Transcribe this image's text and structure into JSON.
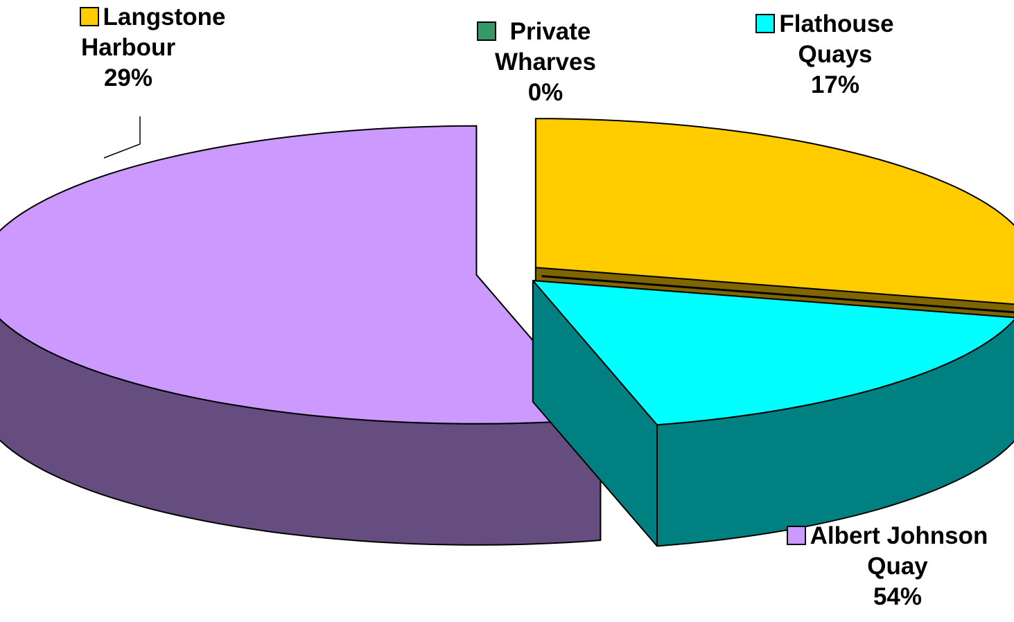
{
  "chart_data": {
    "type": "pie",
    "title": "",
    "three_d": true,
    "exploded": true,
    "slices": [
      {
        "label_lines": [
          "Langstone",
          "Harbour"
        ],
        "value": 29,
        "pct_label": "29%",
        "top_color": "#FFCC00",
        "side_color": "#806600",
        "key": "langstone"
      },
      {
        "label_lines": [
          "Private",
          "Wharves"
        ],
        "value": 0,
        "pct_label": "0%",
        "top_color": "#339966",
        "side_color": "#1A4D33",
        "key": "private"
      },
      {
        "label_lines": [
          "Flathouse",
          "Quays"
        ],
        "value": 17,
        "pct_label": "17%",
        "top_color": "#00FFFF",
        "side_color": "#008080",
        "key": "flathouse"
      },
      {
        "label_lines": [
          "Albert Johnson",
          "Quay"
        ],
        "value": 54,
        "pct_label": "54%",
        "top_color": "#CC99FF",
        "side_color": "#664D80",
        "key": "albert"
      }
    ]
  }
}
